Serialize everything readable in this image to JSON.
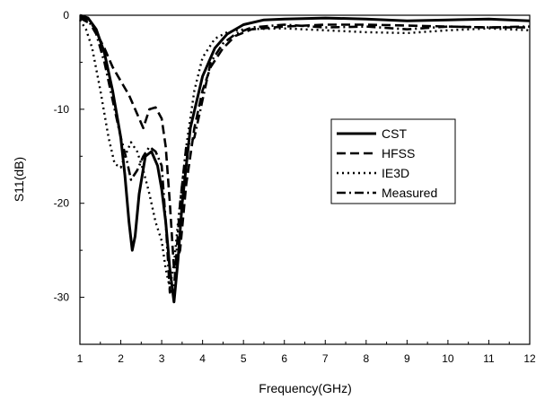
{
  "chart_data": {
    "type": "line",
    "xlabel": "Frequency(GHz)",
    "ylabel": "S11(dB)",
    "xlim": [
      1,
      12
    ],
    "ylim": [
      -35,
      0
    ],
    "xticks": [
      1,
      2,
      3,
      4,
      5,
      6,
      7,
      8,
      9,
      10,
      11,
      12
    ],
    "yticks": [
      0,
      -10,
      -20,
      -30
    ],
    "legend_position": "right-center",
    "grid": false,
    "series": [
      {
        "name": "CST",
        "style": "solid",
        "color": "#000000",
        "x": [
          1.0,
          1.2,
          1.4,
          1.6,
          1.8,
          2.0,
          2.1,
          2.2,
          2.28,
          2.35,
          2.45,
          2.6,
          2.75,
          2.9,
          3.0,
          3.1,
          3.2,
          3.3,
          3.4,
          3.5,
          3.7,
          4.0,
          4.3,
          4.6,
          5.0,
          5.5,
          6.0,
          7.0,
          8.0,
          9.0,
          10.0,
          11.0,
          12.0
        ],
        "y": [
          0,
          -0.3,
          -1.5,
          -4.0,
          -8.0,
          -13.0,
          -17.0,
          -22.0,
          -25.0,
          -23.5,
          -19.0,
          -15.0,
          -14.5,
          -16.0,
          -18.5,
          -22.0,
          -27.0,
          -30.5,
          -26.0,
          -20.0,
          -12.0,
          -6.5,
          -3.5,
          -2.0,
          -1.0,
          -0.5,
          -0.4,
          -0.3,
          -0.4,
          -0.6,
          -0.5,
          -0.4,
          -0.6
        ]
      },
      {
        "name": "HFSS",
        "style": "dash",
        "color": "#000000",
        "x": [
          1.0,
          1.3,
          1.6,
          1.8,
          2.0,
          2.2,
          2.4,
          2.55,
          2.7,
          2.85,
          3.0,
          3.1,
          3.2,
          3.3,
          3.45,
          3.6,
          3.8,
          4.0,
          4.2,
          4.5,
          4.8,
          5.2,
          6.0,
          7.0,
          8.0,
          9.0,
          10.0,
          11.0,
          12.0
        ],
        "y": [
          -0.3,
          -1.0,
          -3.5,
          -5.5,
          -7.0,
          -8.5,
          -10.5,
          -12.0,
          -10.0,
          -9.8,
          -11.0,
          -14.0,
          -20.0,
          -27.0,
          -25.0,
          -18.0,
          -12.0,
          -8.0,
          -5.5,
          -3.5,
          -2.2,
          -1.5,
          -1.2,
          -1.0,
          -1.0,
          -1.1,
          -1.2,
          -1.3,
          -1.3
        ]
      },
      {
        "name": "IE3D",
        "style": "dot",
        "color": "#000000",
        "x": [
          1.0,
          1.15,
          1.3,
          1.5,
          1.7,
          1.85,
          2.0,
          2.1,
          2.25,
          2.4,
          2.55,
          2.7,
          2.85,
          3.0,
          3.1,
          3.2,
          3.3,
          3.4,
          3.6,
          3.8,
          4.0,
          4.3,
          4.6,
          5.0,
          6.0,
          7.0,
          8.0,
          9.0,
          10.0,
          11.0,
          12.0
        ],
        "y": [
          -0.5,
          -1.5,
          -3.5,
          -8.0,
          -13.0,
          -15.8,
          -16.2,
          -15.0,
          -13.5,
          -14.5,
          -16.5,
          -19.0,
          -22.0,
          -24.0,
          -27.0,
          -29.0,
          -26.5,
          -22.0,
          -14.0,
          -8.0,
          -4.5,
          -2.5,
          -1.8,
          -1.5,
          -1.4,
          -1.6,
          -1.8,
          -1.9,
          -1.6,
          -1.4,
          -1.6
        ]
      },
      {
        "name": "Measured",
        "style": "dashdot",
        "color": "#000000",
        "x": [
          1.0,
          1.2,
          1.4,
          1.6,
          1.8,
          2.0,
          2.15,
          2.25,
          2.4,
          2.55,
          2.7,
          2.85,
          3.0,
          3.1,
          3.2,
          3.3,
          3.45,
          3.6,
          3.8,
          4.0,
          4.2,
          4.5,
          4.8,
          5.2,
          6.0,
          7.0,
          8.0,
          9.0,
          10.0,
          11.0,
          12.0
        ],
        "y": [
          -0.1,
          -0.5,
          -2.0,
          -5.0,
          -9.0,
          -13.0,
          -15.5,
          -17.5,
          -16.5,
          -15.0,
          -14.0,
          -14.5,
          -16.0,
          -22.0,
          -29.5,
          -29.0,
          -20.0,
          -14.0,
          -13.0,
          -9.0,
          -5.0,
          -3.0,
          -2.0,
          -1.3,
          -1.0,
          -1.3,
          -1.2,
          -1.5,
          -1.2,
          -1.3,
          -1.2
        ]
      }
    ]
  }
}
